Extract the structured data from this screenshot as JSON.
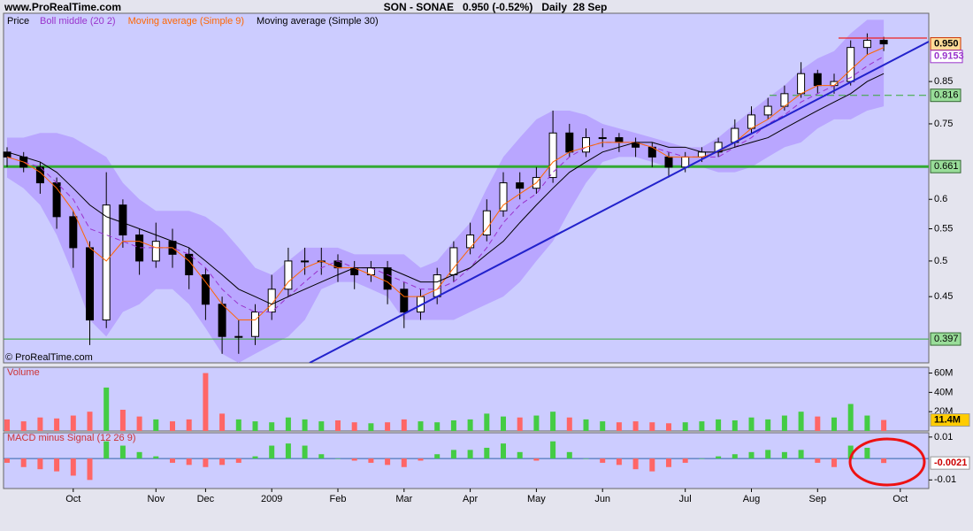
{
  "header": {
    "site": "www.ProRealTime.com",
    "title": "SON - SONAE   0.950 (-0.52%)   Daily  28 Sep"
  },
  "chart_data": [
    {
      "type": "candlestick",
      "price_label": "Price",
      "watermark": "© ProRealTime.com",
      "log": true,
      "categories": [
        null,
        null,
        null,
        null,
        "Oct",
        null,
        null,
        null,
        null,
        "Nov",
        null,
        null,
        "Dec",
        null,
        null,
        null,
        "2009",
        null,
        null,
        null,
        "Feb",
        null,
        null,
        null,
        "Mar",
        null,
        null,
        null,
        "Apr",
        null,
        null,
        null,
        "May",
        null,
        null,
        null,
        "Jun",
        null,
        null,
        null,
        null,
        "Jul",
        null,
        null,
        null,
        "Aug",
        null,
        null,
        null,
        "Sep",
        null,
        null,
        null,
        null,
        "Oct"
      ],
      "open": [
        0.69,
        0.68,
        0.66,
        0.63,
        0.57,
        0.52,
        0.42,
        0.59,
        0.54,
        0.5,
        0.53,
        0.51,
        0.48,
        0.44,
        0.4,
        0.4,
        0.43,
        0.46,
        0.5,
        0.5,
        0.5,
        0.49,
        0.48,
        0.49,
        0.46,
        0.43,
        0.45,
        0.48,
        0.52,
        0.54,
        0.58,
        0.63,
        0.62,
        0.64,
        0.73,
        0.69,
        0.72,
        0.72,
        0.71,
        0.7,
        0.68,
        0.66,
        0.68,
        0.69,
        0.71,
        0.74,
        0.77,
        0.79,
        0.82,
        0.87,
        0.84,
        0.85,
        0.94,
        0.96,
        null
      ],
      "high": [
        0.7,
        0.69,
        0.67,
        0.64,
        0.58,
        0.53,
        0.65,
        0.6,
        0.55,
        0.56,
        0.55,
        0.52,
        0.49,
        0.45,
        0.42,
        0.44,
        0.48,
        0.52,
        0.52,
        0.52,
        0.51,
        0.5,
        0.5,
        0.5,
        0.47,
        0.46,
        0.49,
        0.53,
        0.56,
        0.6,
        0.65,
        0.65,
        0.66,
        0.78,
        0.75,
        0.74,
        0.74,
        0.73,
        0.72,
        0.71,
        0.69,
        0.69,
        0.7,
        0.72,
        0.76,
        0.79,
        0.81,
        0.84,
        0.9,
        0.88,
        0.87,
        0.96,
        0.98,
        0.97,
        null
      ],
      "low": [
        0.66,
        0.65,
        0.61,
        0.55,
        0.49,
        0.39,
        0.41,
        0.52,
        0.48,
        0.49,
        0.49,
        0.46,
        0.42,
        0.38,
        0.38,
        0.39,
        0.42,
        0.45,
        0.48,
        0.48,
        0.47,
        0.46,
        0.47,
        0.44,
        0.41,
        0.42,
        0.44,
        0.47,
        0.51,
        0.53,
        0.57,
        0.6,
        0.61,
        0.63,
        0.68,
        0.68,
        0.7,
        0.69,
        0.68,
        0.66,
        0.64,
        0.65,
        0.67,
        0.68,
        0.7,
        0.73,
        0.76,
        0.78,
        0.81,
        0.82,
        0.82,
        0.84,
        0.92,
        0.93,
        null
      ],
      "close": [
        0.68,
        0.66,
        0.63,
        0.57,
        0.52,
        0.42,
        0.59,
        0.54,
        0.5,
        0.53,
        0.51,
        0.48,
        0.44,
        0.4,
        0.4,
        0.43,
        0.46,
        0.5,
        0.5,
        0.5,
        0.49,
        0.48,
        0.49,
        0.46,
        0.43,
        0.45,
        0.48,
        0.52,
        0.54,
        0.58,
        0.63,
        0.62,
        0.64,
        0.73,
        0.69,
        0.72,
        0.72,
        0.71,
        0.7,
        0.68,
        0.66,
        0.68,
        0.69,
        0.71,
        0.74,
        0.77,
        0.79,
        0.82,
        0.87,
        0.84,
        0.85,
        0.94,
        0.96,
        0.95,
        null
      ],
      "close_labels": [
        null,
        null,
        null,
        null,
        null,
        null,
        null,
        null,
        null,
        null,
        null,
        null,
        null,
        null,
        null,
        null,
        null,
        null,
        null,
        null,
        null,
        null,
        null,
        null,
        null,
        null,
        null,
        null,
        null,
        null,
        null,
        null,
        null,
        null,
        null,
        null,
        null,
        null,
        null,
        null,
        null,
        null,
        null,
        null,
        null,
        null,
        null,
        null,
        null,
        null,
        null,
        null,
        null,
        "0.950",
        null
      ],
      "series": [
        {
          "name": "Boll middle (20 2)",
          "color": "#9933cc",
          "dashed": true,
          "values": [
            0.68,
            0.67,
            0.66,
            0.63,
            0.6,
            0.55,
            0.54,
            0.53,
            0.52,
            0.52,
            0.52,
            0.51,
            0.49,
            0.46,
            0.44,
            0.43,
            0.43,
            0.45,
            0.47,
            0.49,
            0.5,
            0.49,
            0.49,
            0.48,
            0.47,
            0.46,
            0.46,
            0.47,
            0.49,
            0.52,
            0.56,
            0.59,
            0.61,
            0.65,
            0.68,
            0.7,
            0.71,
            0.71,
            0.71,
            0.7,
            0.69,
            0.68,
            0.68,
            0.68,
            0.7,
            0.72,
            0.75,
            0.77,
            0.8,
            0.82,
            0.84,
            0.86,
            0.89,
            0.9153,
            null
          ]
        },
        {
          "name": "Moving average (Simple 9)",
          "color": "#ff6600",
          "dashed": false,
          "values": [
            0.68,
            0.67,
            0.65,
            0.62,
            0.58,
            0.52,
            0.5,
            0.53,
            0.53,
            0.52,
            0.52,
            0.5,
            0.47,
            0.44,
            0.42,
            0.42,
            0.44,
            0.47,
            0.49,
            0.5,
            0.49,
            0.49,
            0.48,
            0.47,
            0.45,
            0.45,
            0.46,
            0.49,
            0.52,
            0.55,
            0.59,
            0.61,
            0.63,
            0.67,
            0.69,
            0.7,
            0.71,
            0.71,
            0.71,
            0.7,
            0.68,
            0.68,
            0.68,
            0.69,
            0.71,
            0.74,
            0.76,
            0.79,
            0.82,
            0.84,
            0.84,
            0.88,
            0.92,
            0.94,
            null
          ]
        },
        {
          "name": "Moving average (Simple 30)",
          "color": "#000000",
          "dashed": false,
          "values": [
            0.69,
            0.68,
            0.67,
            0.65,
            0.62,
            0.59,
            0.57,
            0.56,
            0.55,
            0.54,
            0.53,
            0.52,
            0.5,
            0.48,
            0.46,
            0.45,
            0.44,
            0.45,
            0.46,
            0.47,
            0.48,
            0.49,
            0.49,
            0.49,
            0.48,
            0.47,
            0.47,
            0.48,
            0.49,
            0.51,
            0.53,
            0.56,
            0.59,
            0.62,
            0.65,
            0.67,
            0.69,
            0.7,
            0.71,
            0.71,
            0.7,
            0.7,
            0.69,
            0.69,
            0.7,
            0.71,
            0.72,
            0.74,
            0.76,
            0.78,
            0.8,
            0.82,
            0.85,
            0.87,
            null
          ]
        }
      ],
      "band": {
        "color": "#b399ff",
        "upper": [
          0.72,
          0.72,
          0.73,
          0.73,
          0.72,
          0.7,
          0.68,
          0.63,
          0.6,
          0.58,
          0.58,
          0.58,
          0.57,
          0.55,
          0.52,
          0.49,
          0.48,
          0.5,
          0.52,
          0.52,
          0.52,
          0.51,
          0.51,
          0.51,
          0.51,
          0.49,
          0.5,
          0.53,
          0.56,
          0.62,
          0.68,
          0.72,
          0.76,
          0.78,
          0.78,
          0.77,
          0.75,
          0.74,
          0.73,
          0.72,
          0.71,
          0.7,
          0.7,
          0.72,
          0.75,
          0.78,
          0.81,
          0.84,
          0.88,
          0.91,
          0.93,
          0.98,
          1.02,
          1.02,
          null
        ],
        "lower": [
          0.64,
          0.62,
          0.59,
          0.54,
          0.48,
          0.42,
          0.4,
          0.43,
          0.44,
          0.46,
          0.46,
          0.44,
          0.41,
          0.38,
          0.37,
          0.38,
          0.39,
          0.4,
          0.42,
          0.46,
          0.47,
          0.47,
          0.46,
          0.45,
          0.42,
          0.42,
          0.42,
          0.42,
          0.43,
          0.44,
          0.45,
          0.47,
          0.5,
          0.53,
          0.58,
          0.63,
          0.67,
          0.68,
          0.68,
          0.67,
          0.66,
          0.66,
          0.66,
          0.65,
          0.65,
          0.66,
          0.68,
          0.7,
          0.71,
          0.74,
          0.76,
          0.76,
          0.78,
          0.79,
          null
        ]
      },
      "levels": [
        0.397,
        0.661,
        0.816
      ],
      "level_styles": [
        "solid",
        "solid",
        "dashed"
      ],
      "level_color": "#33aa33",
      "ylim": [
        0.37,
        1.04
      ],
      "yticks": [
        0.45,
        0.5,
        0.55,
        0.6,
        0.75,
        0.85
      ]
    },
    {
      "type": "bar",
      "title": "Volume",
      "colors": {
        "up": "#44cc44",
        "down": "#ff6666"
      },
      "values": [
        12,
        10,
        14,
        13,
        16,
        20,
        45,
        22,
        15,
        12,
        10,
        12,
        60,
        18,
        12,
        10,
        9,
        14,
        12,
        10,
        11,
        9,
        8,
        9,
        12,
        10,
        9,
        11,
        12,
        18,
        15,
        14,
        16,
        20,
        14,
        12,
        10,
        9,
        10,
        9,
        8,
        9,
        10,
        12,
        11,
        14,
        12,
        16,
        20,
        15,
        14,
        28,
        16,
        11.4,
        null
      ],
      "value_labels": [
        null,
        null,
        null,
        null,
        null,
        null,
        null,
        null,
        null,
        null,
        null,
        null,
        null,
        null,
        null,
        null,
        null,
        null,
        null,
        null,
        null,
        null,
        null,
        null,
        null,
        null,
        null,
        null,
        null,
        null,
        null,
        null,
        null,
        null,
        null,
        null,
        null,
        null,
        null,
        null,
        null,
        null,
        null,
        null,
        null,
        null,
        null,
        null,
        null,
        null,
        null,
        null,
        null,
        "11.4M",
        null
      ],
      "ylim": [
        0,
        66
      ],
      "yticks": [
        {
          "value": 20,
          "label": "20M"
        },
        {
          "value": 40,
          "label": "40M"
        },
        {
          "value": 60,
          "label": "60M"
        }
      ]
    },
    {
      "type": "bar",
      "title": "MACD minus Signal (12 26 9)",
      "colors": {
        "up": "#44cc44",
        "down": "#ff6666"
      },
      "values": [
        -0.002,
        -0.004,
        -0.005,
        -0.006,
        -0.008,
        -0.01,
        0.008,
        0.006,
        0.003,
        0.001,
        -0.002,
        -0.003,
        -0.004,
        -0.003,
        -0.002,
        0.001,
        0.006,
        0.007,
        0.006,
        0.002,
        0,
        -0.001,
        -0.002,
        -0.003,
        -0.004,
        -0.001,
        0.002,
        0.004,
        0.004,
        0.005,
        0.007,
        0.003,
        -0.001,
        0.008,
        0.003,
        0,
        -0.002,
        -0.003,
        -0.005,
        -0.006,
        -0.004,
        -0.002,
        0,
        0.001,
        0.002,
        0.003,
        0.004,
        0.003,
        0.004,
        -0.002,
        -0.004,
        0.006,
        0.005,
        -0.0021,
        null
      ],
      "ylim": [
        -0.014,
        0.012
      ],
      "yticks": [
        -0.01,
        0.01
      ]
    }
  ]
}
